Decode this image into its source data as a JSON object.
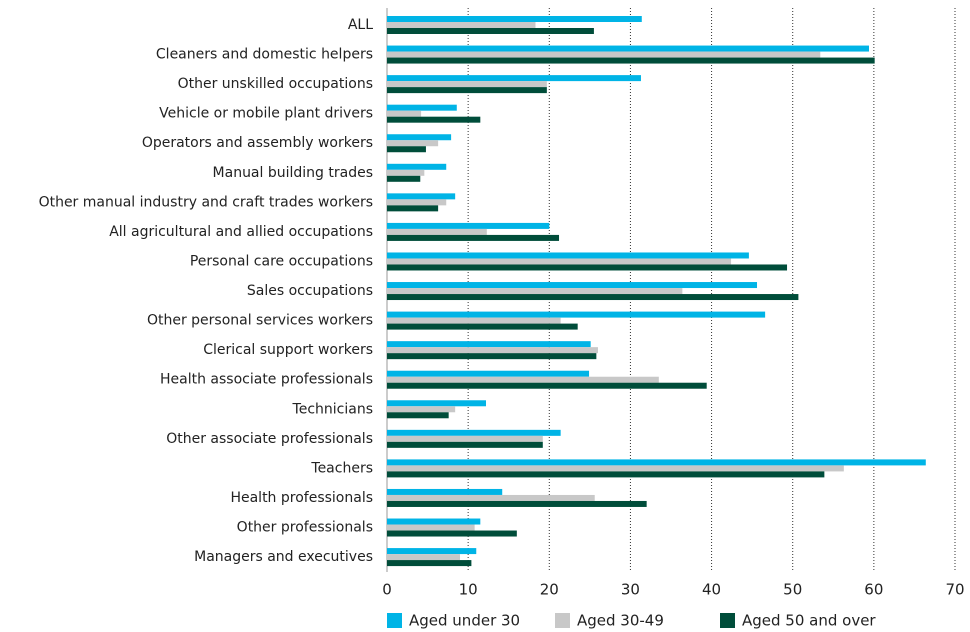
{
  "chart_data": {
    "type": "bar",
    "orientation": "horizontal",
    "categories": [
      "ALL",
      "Cleaners and domestic helpers",
      "Other unskilled occupations",
      "Vehicle or mobile plant drivers",
      "Operators and assembly workers",
      "Manual building trades",
      "Other manual industry and craft trades workers",
      "All agricultural and allied occupations",
      "Personal care occupations",
      "Sales occupations",
      "Other personal services workers",
      "Clerical support workers",
      "Health associate professionals",
      "Technicians",
      "Other associate professionals",
      "Teachers",
      "Health professionals",
      "Other professionals",
      "Managers and executives"
    ],
    "series": [
      {
        "name": "Aged under 30",
        "color": "#00b4e6",
        "values": [
          31.4,
          59.4,
          31.3,
          8.6,
          7.9,
          7.3,
          8.4,
          20.0,
          44.6,
          45.6,
          46.6,
          25.1,
          24.9,
          12.2,
          21.4,
          66.4,
          14.2,
          11.5,
          11.0
        ]
      },
      {
        "name": "Aged 30-49",
        "color": "#c8c8c8",
        "values": [
          18.3,
          53.4,
          19.7,
          4.2,
          6.3,
          4.6,
          7.3,
          12.3,
          42.4,
          36.4,
          21.4,
          26.0,
          33.5,
          8.4,
          19.2,
          56.3,
          25.6,
          10.8,
          9.0
        ]
      },
      {
        "name": "Aged 50 and over",
        "color": "#004d3a",
        "values": [
          25.5,
          60.1,
          19.7,
          11.5,
          4.8,
          4.1,
          6.3,
          21.2,
          49.3,
          50.7,
          23.5,
          25.8,
          39.4,
          7.6,
          19.2,
          53.9,
          32.0,
          16.0,
          10.4
        ]
      }
    ],
    "xlim": [
      0,
      70
    ],
    "xticks": [
      0,
      10,
      20,
      30,
      40,
      50,
      60,
      70
    ],
    "grid": true,
    "legend": "bottom"
  }
}
